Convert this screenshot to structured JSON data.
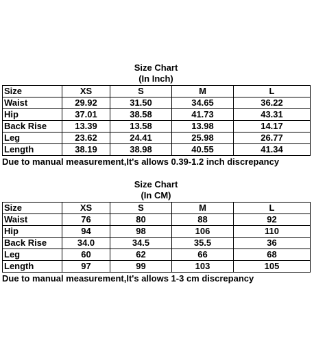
{
  "tables": [
    {
      "title": "Size Chart",
      "subtitle": "(In Inch)",
      "header": [
        "Size",
        "XS",
        "S",
        "M",
        "L"
      ],
      "rows": [
        [
          "Waist",
          "29.92",
          "31.50",
          "34.65",
          "36.22"
        ],
        [
          "Hip",
          "37.01",
          "38.58",
          "41.73",
          "43.31"
        ],
        [
          "Back Rise",
          "13.39",
          "13.58",
          "13.98",
          "14.17"
        ],
        [
          "Leg",
          "23.62",
          "24.41",
          "25.98",
          "26.77"
        ],
        [
          "Length",
          "38.19",
          "38.98",
          "40.55",
          "41.34"
        ]
      ],
      "note": "Due to manual measurement,It's allows 0.39-1.2 inch discrepancy"
    },
    {
      "title": "Size Chart",
      "subtitle": "(In CM)",
      "header": [
        "Size",
        "XS",
        "S",
        "M",
        "L"
      ],
      "rows": [
        [
          "Waist",
          "76",
          "80",
          "88",
          "92"
        ],
        [
          "Hip",
          "94",
          "98",
          "106",
          "110"
        ],
        [
          "Back Rise",
          "34.0",
          "34.5",
          "35.5",
          "36"
        ],
        [
          "Leg",
          "60",
          "62",
          "66",
          "68"
        ],
        [
          "Length",
          "97",
          "99",
          "103",
          "105"
        ]
      ],
      "note": "Due to manual measurement,It's allows 1-3 cm discrepancy"
    }
  ]
}
